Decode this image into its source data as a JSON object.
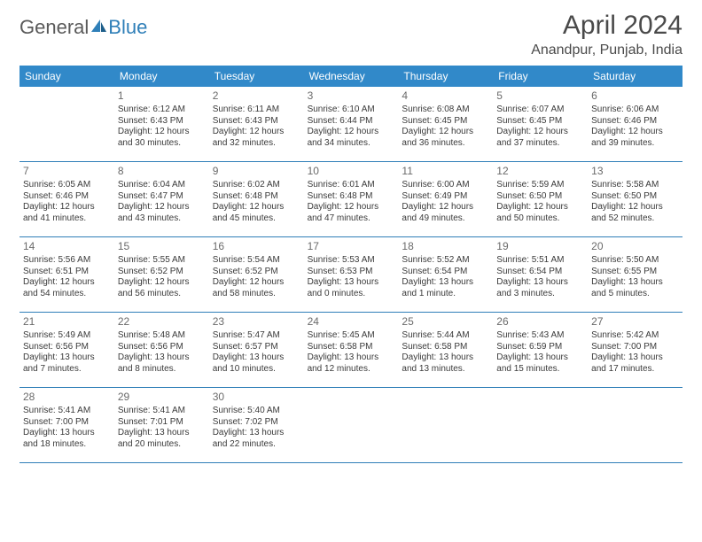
{
  "logo": {
    "general": "General",
    "blue": "Blue"
  },
  "title": "April 2024",
  "location": "Anandpur, Punjab, India",
  "colors": {
    "header_bg": "#3189c9",
    "header_fg": "#ffffff",
    "rule": "#2f7fb8",
    "text": "#3a3a3a",
    "title": "#4a4a4a"
  },
  "dayHeaders": [
    "Sunday",
    "Monday",
    "Tuesday",
    "Wednesday",
    "Thursday",
    "Friday",
    "Saturday"
  ],
  "weeks": [
    [
      {
        "empty": true
      },
      {
        "n": "1",
        "sunrise": "6:12 AM",
        "sunset": "6:43 PM",
        "daylight": "12 hours and 30 minutes."
      },
      {
        "n": "2",
        "sunrise": "6:11 AM",
        "sunset": "6:43 PM",
        "daylight": "12 hours and 32 minutes."
      },
      {
        "n": "3",
        "sunrise": "6:10 AM",
        "sunset": "6:44 PM",
        "daylight": "12 hours and 34 minutes."
      },
      {
        "n": "4",
        "sunrise": "6:08 AM",
        "sunset": "6:45 PM",
        "daylight": "12 hours and 36 minutes."
      },
      {
        "n": "5",
        "sunrise": "6:07 AM",
        "sunset": "6:45 PM",
        "daylight": "12 hours and 37 minutes."
      },
      {
        "n": "6",
        "sunrise": "6:06 AM",
        "sunset": "6:46 PM",
        "daylight": "12 hours and 39 minutes."
      }
    ],
    [
      {
        "n": "7",
        "sunrise": "6:05 AM",
        "sunset": "6:46 PM",
        "daylight": "12 hours and 41 minutes."
      },
      {
        "n": "8",
        "sunrise": "6:04 AM",
        "sunset": "6:47 PM",
        "daylight": "12 hours and 43 minutes."
      },
      {
        "n": "9",
        "sunrise": "6:02 AM",
        "sunset": "6:48 PM",
        "daylight": "12 hours and 45 minutes."
      },
      {
        "n": "10",
        "sunrise": "6:01 AM",
        "sunset": "6:48 PM",
        "daylight": "12 hours and 47 minutes."
      },
      {
        "n": "11",
        "sunrise": "6:00 AM",
        "sunset": "6:49 PM",
        "daylight": "12 hours and 49 minutes."
      },
      {
        "n": "12",
        "sunrise": "5:59 AM",
        "sunset": "6:50 PM",
        "daylight": "12 hours and 50 minutes."
      },
      {
        "n": "13",
        "sunrise": "5:58 AM",
        "sunset": "6:50 PM",
        "daylight": "12 hours and 52 minutes."
      }
    ],
    [
      {
        "n": "14",
        "sunrise": "5:56 AM",
        "sunset": "6:51 PM",
        "daylight": "12 hours and 54 minutes."
      },
      {
        "n": "15",
        "sunrise": "5:55 AM",
        "sunset": "6:52 PM",
        "daylight": "12 hours and 56 minutes."
      },
      {
        "n": "16",
        "sunrise": "5:54 AM",
        "sunset": "6:52 PM",
        "daylight": "12 hours and 58 minutes."
      },
      {
        "n": "17",
        "sunrise": "5:53 AM",
        "sunset": "6:53 PM",
        "daylight": "13 hours and 0 minutes."
      },
      {
        "n": "18",
        "sunrise": "5:52 AM",
        "sunset": "6:54 PM",
        "daylight": "13 hours and 1 minute."
      },
      {
        "n": "19",
        "sunrise": "5:51 AM",
        "sunset": "6:54 PM",
        "daylight": "13 hours and 3 minutes."
      },
      {
        "n": "20",
        "sunrise": "5:50 AM",
        "sunset": "6:55 PM",
        "daylight": "13 hours and 5 minutes."
      }
    ],
    [
      {
        "n": "21",
        "sunrise": "5:49 AM",
        "sunset": "6:56 PM",
        "daylight": "13 hours and 7 minutes."
      },
      {
        "n": "22",
        "sunrise": "5:48 AM",
        "sunset": "6:56 PM",
        "daylight": "13 hours and 8 minutes."
      },
      {
        "n": "23",
        "sunrise": "5:47 AM",
        "sunset": "6:57 PM",
        "daylight": "13 hours and 10 minutes."
      },
      {
        "n": "24",
        "sunrise": "5:45 AM",
        "sunset": "6:58 PM",
        "daylight": "13 hours and 12 minutes."
      },
      {
        "n": "25",
        "sunrise": "5:44 AM",
        "sunset": "6:58 PM",
        "daylight": "13 hours and 13 minutes."
      },
      {
        "n": "26",
        "sunrise": "5:43 AM",
        "sunset": "6:59 PM",
        "daylight": "13 hours and 15 minutes."
      },
      {
        "n": "27",
        "sunrise": "5:42 AM",
        "sunset": "7:00 PM",
        "daylight": "13 hours and 17 minutes."
      }
    ],
    [
      {
        "n": "28",
        "sunrise": "5:41 AM",
        "sunset": "7:00 PM",
        "daylight": "13 hours and 18 minutes."
      },
      {
        "n": "29",
        "sunrise": "5:41 AM",
        "sunset": "7:01 PM",
        "daylight": "13 hours and 20 minutes."
      },
      {
        "n": "30",
        "sunrise": "5:40 AM",
        "sunset": "7:02 PM",
        "daylight": "13 hours and 22 minutes."
      },
      {
        "empty": true
      },
      {
        "empty": true
      },
      {
        "empty": true
      },
      {
        "empty": true
      }
    ]
  ]
}
